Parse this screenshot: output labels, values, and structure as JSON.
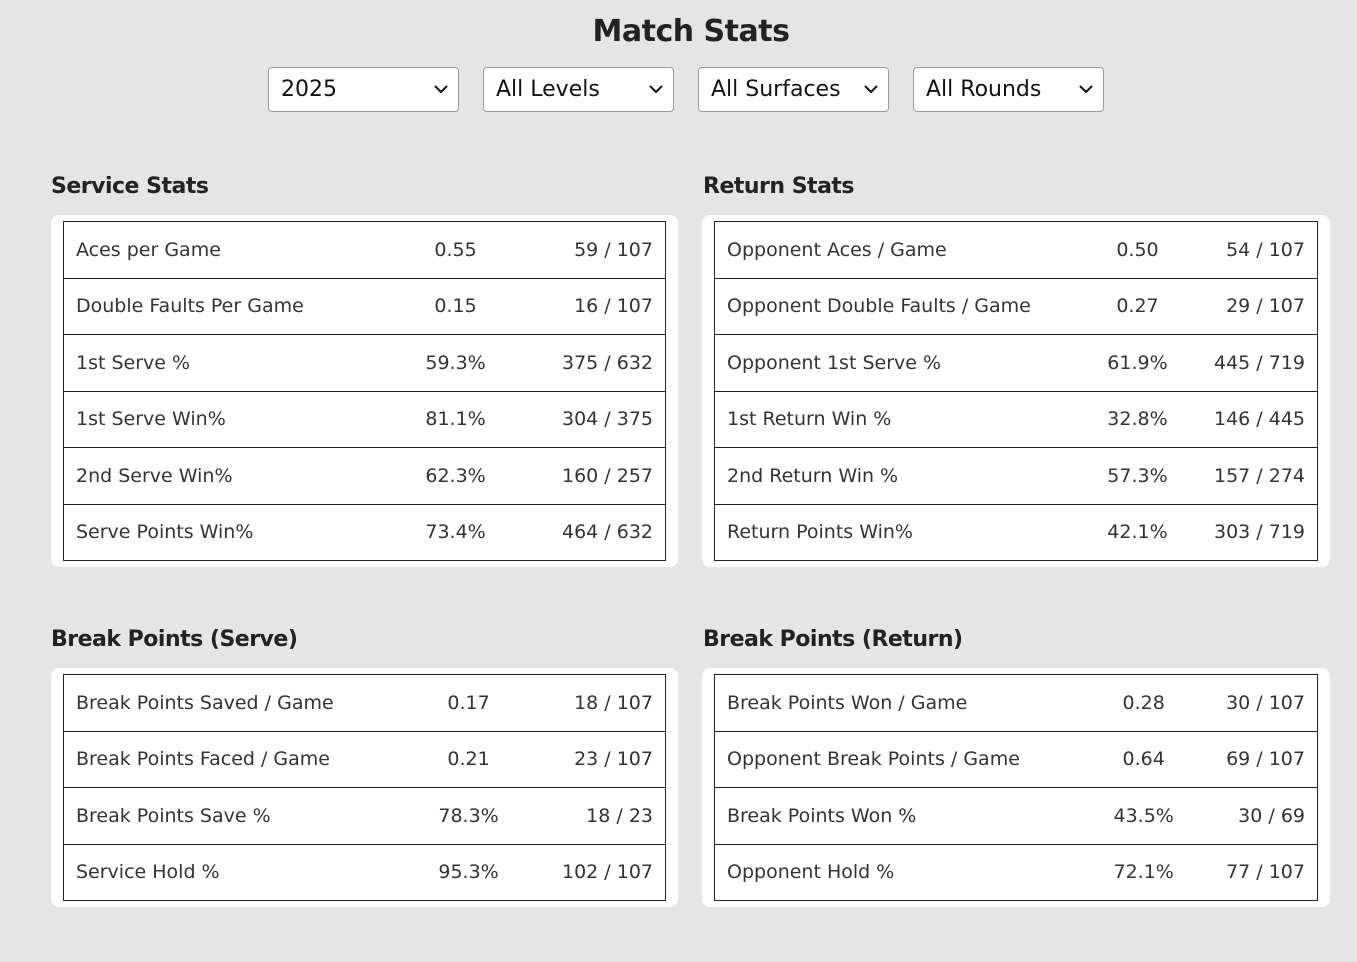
{
  "page_title": "Match Stats",
  "filters": [
    {
      "name": "year",
      "value": "2025"
    },
    {
      "name": "level",
      "value": "All Levels"
    },
    {
      "name": "surface",
      "value": "All Surfaces"
    },
    {
      "name": "round",
      "value": "All Rounds"
    }
  ],
  "service_stats": {
    "title": "Service Stats",
    "rows": [
      {
        "label": "Aces per Game",
        "value": "0.55",
        "ratio": "59 / 107"
      },
      {
        "label": "Double Faults Per Game",
        "value": "0.15",
        "ratio": "16 / 107"
      },
      {
        "label": "1st Serve %",
        "value": "59.3%",
        "ratio": "375 / 632"
      },
      {
        "label": "1st Serve Win%",
        "value": "81.1%",
        "ratio": "304 / 375"
      },
      {
        "label": "2nd Serve Win%",
        "value": "62.3%",
        "ratio": "160 / 257"
      },
      {
        "label": "Serve Points Win%",
        "value": "73.4%",
        "ratio": "464 / 632"
      }
    ]
  },
  "return_stats": {
    "title": "Return Stats",
    "rows": [
      {
        "label": "Opponent Aces / Game",
        "value": "0.50",
        "ratio": "54 / 107"
      },
      {
        "label": "Opponent Double Faults / Game",
        "value": "0.27",
        "ratio": "29 / 107"
      },
      {
        "label": "Opponent 1st Serve %",
        "value": "61.9%",
        "ratio": "445 / 719"
      },
      {
        "label": "1st Return Win %",
        "value": "32.8%",
        "ratio": "146 / 445"
      },
      {
        "label": "2nd Return Win %",
        "value": "57.3%",
        "ratio": "157 / 274"
      },
      {
        "label": "Return Points Win%",
        "value": "42.1%",
        "ratio": "303 / 719"
      }
    ]
  },
  "break_points_serve": {
    "title": "Break Points (Serve)",
    "rows": [
      {
        "label": "Break Points Saved / Game",
        "value": "0.17",
        "ratio": "18 / 107"
      },
      {
        "label": "Break Points Faced / Game",
        "value": "0.21",
        "ratio": "23 / 107"
      },
      {
        "label": "Break Points Save %",
        "value": "78.3%",
        "ratio": "18 / 23"
      },
      {
        "label": "Service Hold %",
        "value": "95.3%",
        "ratio": "102 / 107"
      }
    ]
  },
  "break_points_return": {
    "title": "Break Points (Return)",
    "rows": [
      {
        "label": "Break Points Won / Game",
        "value": "0.28",
        "ratio": "30 / 107"
      },
      {
        "label": "Opponent Break Points / Game",
        "value": "0.64",
        "ratio": "69 / 107"
      },
      {
        "label": "Break Points Won %",
        "value": "43.5%",
        "ratio": "30 / 69"
      },
      {
        "label": "Opponent Hold %",
        "value": "72.1%",
        "ratio": "77 / 107"
      }
    ]
  },
  "icons": {
    "dropdown": "chevron-down-icon"
  }
}
